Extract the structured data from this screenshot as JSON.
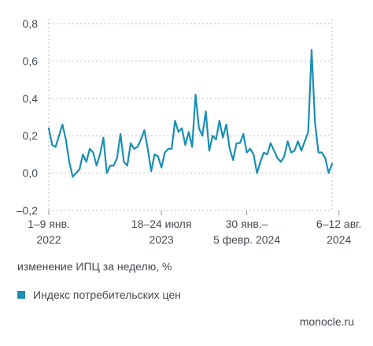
{
  "chart_data": {
    "type": "line",
    "title": "",
    "xlabel": "",
    "ylabel": "изменение ИПЦ за неделю, %",
    "ylim": [
      -0.2,
      0.8
    ],
    "yticks": [
      -0.2,
      0.0,
      0.2,
      0.4,
      0.6,
      0.8
    ],
    "ytick_labels": [
      "–0,2",
      "0,0",
      "0,2",
      "0,4",
      "0,6",
      "0,8"
    ],
    "xtick_labels": [
      {
        "index": 0,
        "lines": [
          "1–9 янв.",
          "2022"
        ]
      },
      {
        "index": 33,
        "lines": [
          "18–24 июля",
          "2023"
        ]
      },
      {
        "index": 58,
        "lines": [
          "30 янв.–",
          "5 февр. 2024"
        ]
      },
      {
        "index": 85,
        "lines": [
          "6–12 авг.",
          "2024"
        ]
      }
    ],
    "grid": true,
    "series": [
      {
        "name": "Индекс потребительских цен",
        "color": "#1a8fb3",
        "values": [
          0.24,
          0.15,
          0.14,
          0.2,
          0.26,
          0.18,
          0.06,
          -0.02,
          0.0,
          0.02,
          0.1,
          0.06,
          0.13,
          0.11,
          0.04,
          0.1,
          0.19,
          0.0,
          0.04,
          0.04,
          0.08,
          0.21,
          0.06,
          0.04,
          0.16,
          0.13,
          0.14,
          0.18,
          0.23,
          0.13,
          0.01,
          0.1,
          0.09,
          0.03,
          0.11,
          0.13,
          0.13,
          0.28,
          0.22,
          0.24,
          0.15,
          0.22,
          0.14,
          0.42,
          0.24,
          0.2,
          0.33,
          0.12,
          0.2,
          0.18,
          0.28,
          0.19,
          0.26,
          0.13,
          0.07,
          0.16,
          0.16,
          0.21,
          0.11,
          0.13,
          0.1,
          0.0,
          0.06,
          0.11,
          0.1,
          0.16,
          0.12,
          0.08,
          0.06,
          0.09,
          0.17,
          0.11,
          0.12,
          0.17,
          0.12,
          0.17,
          0.22,
          0.66,
          0.27,
          0.11,
          0.11,
          0.08,
          0.0,
          0.05
        ]
      }
    ]
  },
  "legend": {
    "label": "Индекс потребительских цен",
    "color": "#1a8fb3"
  },
  "note": "изменение ИПЦ за неделю, %",
  "source": "monocle.ru"
}
